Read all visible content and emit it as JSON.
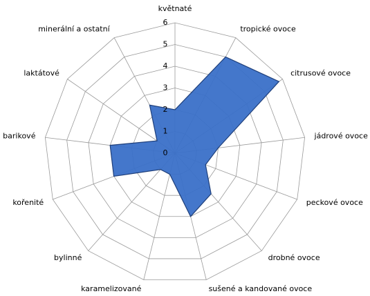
{
  "chart_data": {
    "type": "radar",
    "categories": [
      "květnaté",
      "tropické ovoce",
      "citrusové ovoce",
      "jádrové ovoce",
      "peckové ovoce",
      "drobné ovoce",
      "sušené a kandované ovoce",
      "karamelizované",
      "bylinné",
      "kořenité",
      "barikové",
      "laktátové",
      "minerální a ostatní"
    ],
    "values": [
      2,
      5,
      5.8,
      2,
      1.5,
      2.5,
      3,
      1,
      1,
      3,
      3,
      1,
      2.5
    ],
    "color": "#3a70c8",
    "ylim": [
      0,
      6
    ],
    "yticks": [
      0,
      1,
      2,
      3,
      4,
      5,
      6
    ],
    "grid": true
  }
}
